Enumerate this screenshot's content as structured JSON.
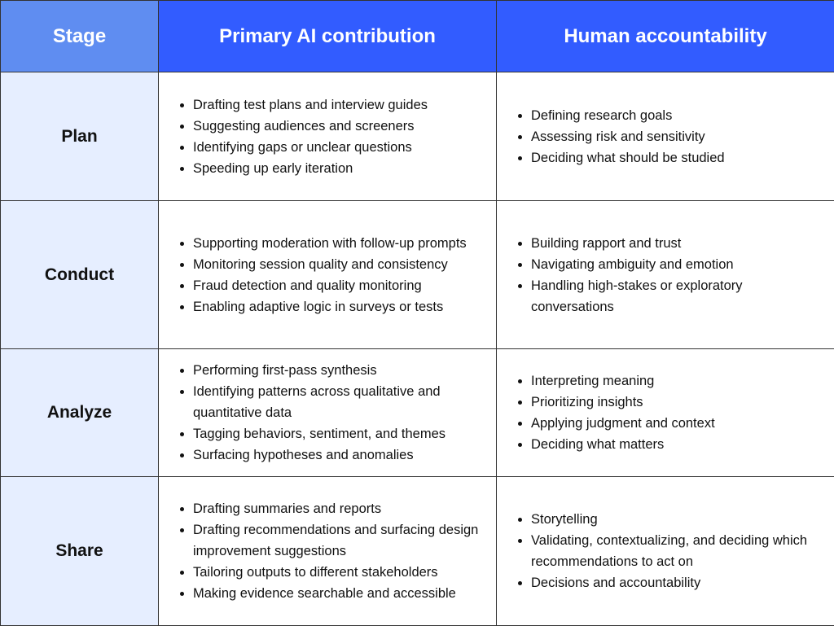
{
  "table": {
    "headers": [
      "Stage",
      "Primary AI contribution",
      "Human accountability"
    ],
    "header_colors": {
      "stage": "#5f8df1",
      "columns": "#325cff",
      "stage_cell_bg": "#e6eeff"
    },
    "rows": [
      {
        "stage": "Plan",
        "ai": [
          "Drafting test plans and interview guides",
          "Suggesting audiences and screeners",
          "Identifying gaps or unclear questions",
          "Speeding up early iteration"
        ],
        "human": [
          "Defining research goals",
          "Assessing risk and sensitivity",
          "Deciding what should be studied"
        ]
      },
      {
        "stage": "Conduct",
        "ai": [
          "Supporting moderation with follow-up prompts",
          "Monitoring session quality and consistency",
          "Fraud detection and quality monitoring",
          "Enabling adaptive logic in surveys or tests"
        ],
        "human": [
          "Building rapport and trust",
          "Navigating ambiguity and emotion",
          "Handling high-stakes or exploratory conversations"
        ]
      },
      {
        "stage": "Analyze",
        "ai": [
          "Performing first-pass synthesis",
          "Identifying patterns across qualitative and quantitative data",
          "Tagging behaviors, sentiment, and themes",
          "Surfacing hypotheses and anomalies"
        ],
        "human": [
          "Interpreting meaning",
          "Prioritizing insights",
          "Applying judgment and context",
          "Deciding what matters"
        ]
      },
      {
        "stage": "Share",
        "ai": [
          "Drafting summaries and reports",
          "Drafting recommendations and surfacing design improvement suggestions",
          "Tailoring outputs to different stakeholders",
          "Making evidence searchable and accessible"
        ],
        "human": [
          "Storytelling",
          "Validating, contextualizing, and deciding which recommendations to act on",
          "Decisions and accountability"
        ]
      }
    ]
  }
}
